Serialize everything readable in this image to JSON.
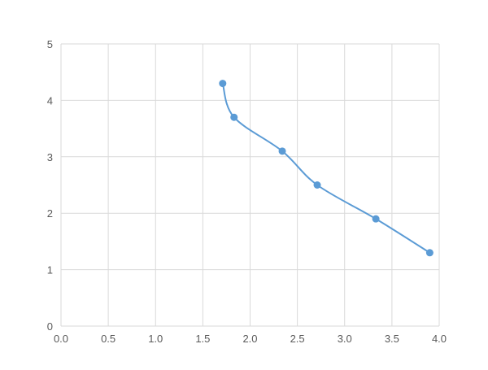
{
  "chart_data": {
    "type": "line",
    "smooth": true,
    "markers": true,
    "title": "",
    "xlabel": "",
    "ylabel": "",
    "xlim": [
      0,
      4.0
    ],
    "ylim": [
      0,
      5
    ],
    "grid": true,
    "x_ticks": [
      "0.0",
      "0.5",
      "1.0",
      "1.5",
      "2.0",
      "2.5",
      "3.0",
      "3.5",
      "4.0"
    ],
    "y_ticks": [
      "0",
      "1",
      "2",
      "3",
      "4",
      "5"
    ],
    "series": [
      {
        "x": [
          1.71,
          1.83,
          2.34,
          2.71,
          3.33,
          3.9
        ],
        "y": [
          4.3,
          3.7,
          3.1,
          2.5,
          1.9,
          1.3
        ],
        "color": "#5B9BD5"
      }
    ],
    "colors": {
      "grid": "#D9D9D9",
      "text": "#595959"
    }
  }
}
